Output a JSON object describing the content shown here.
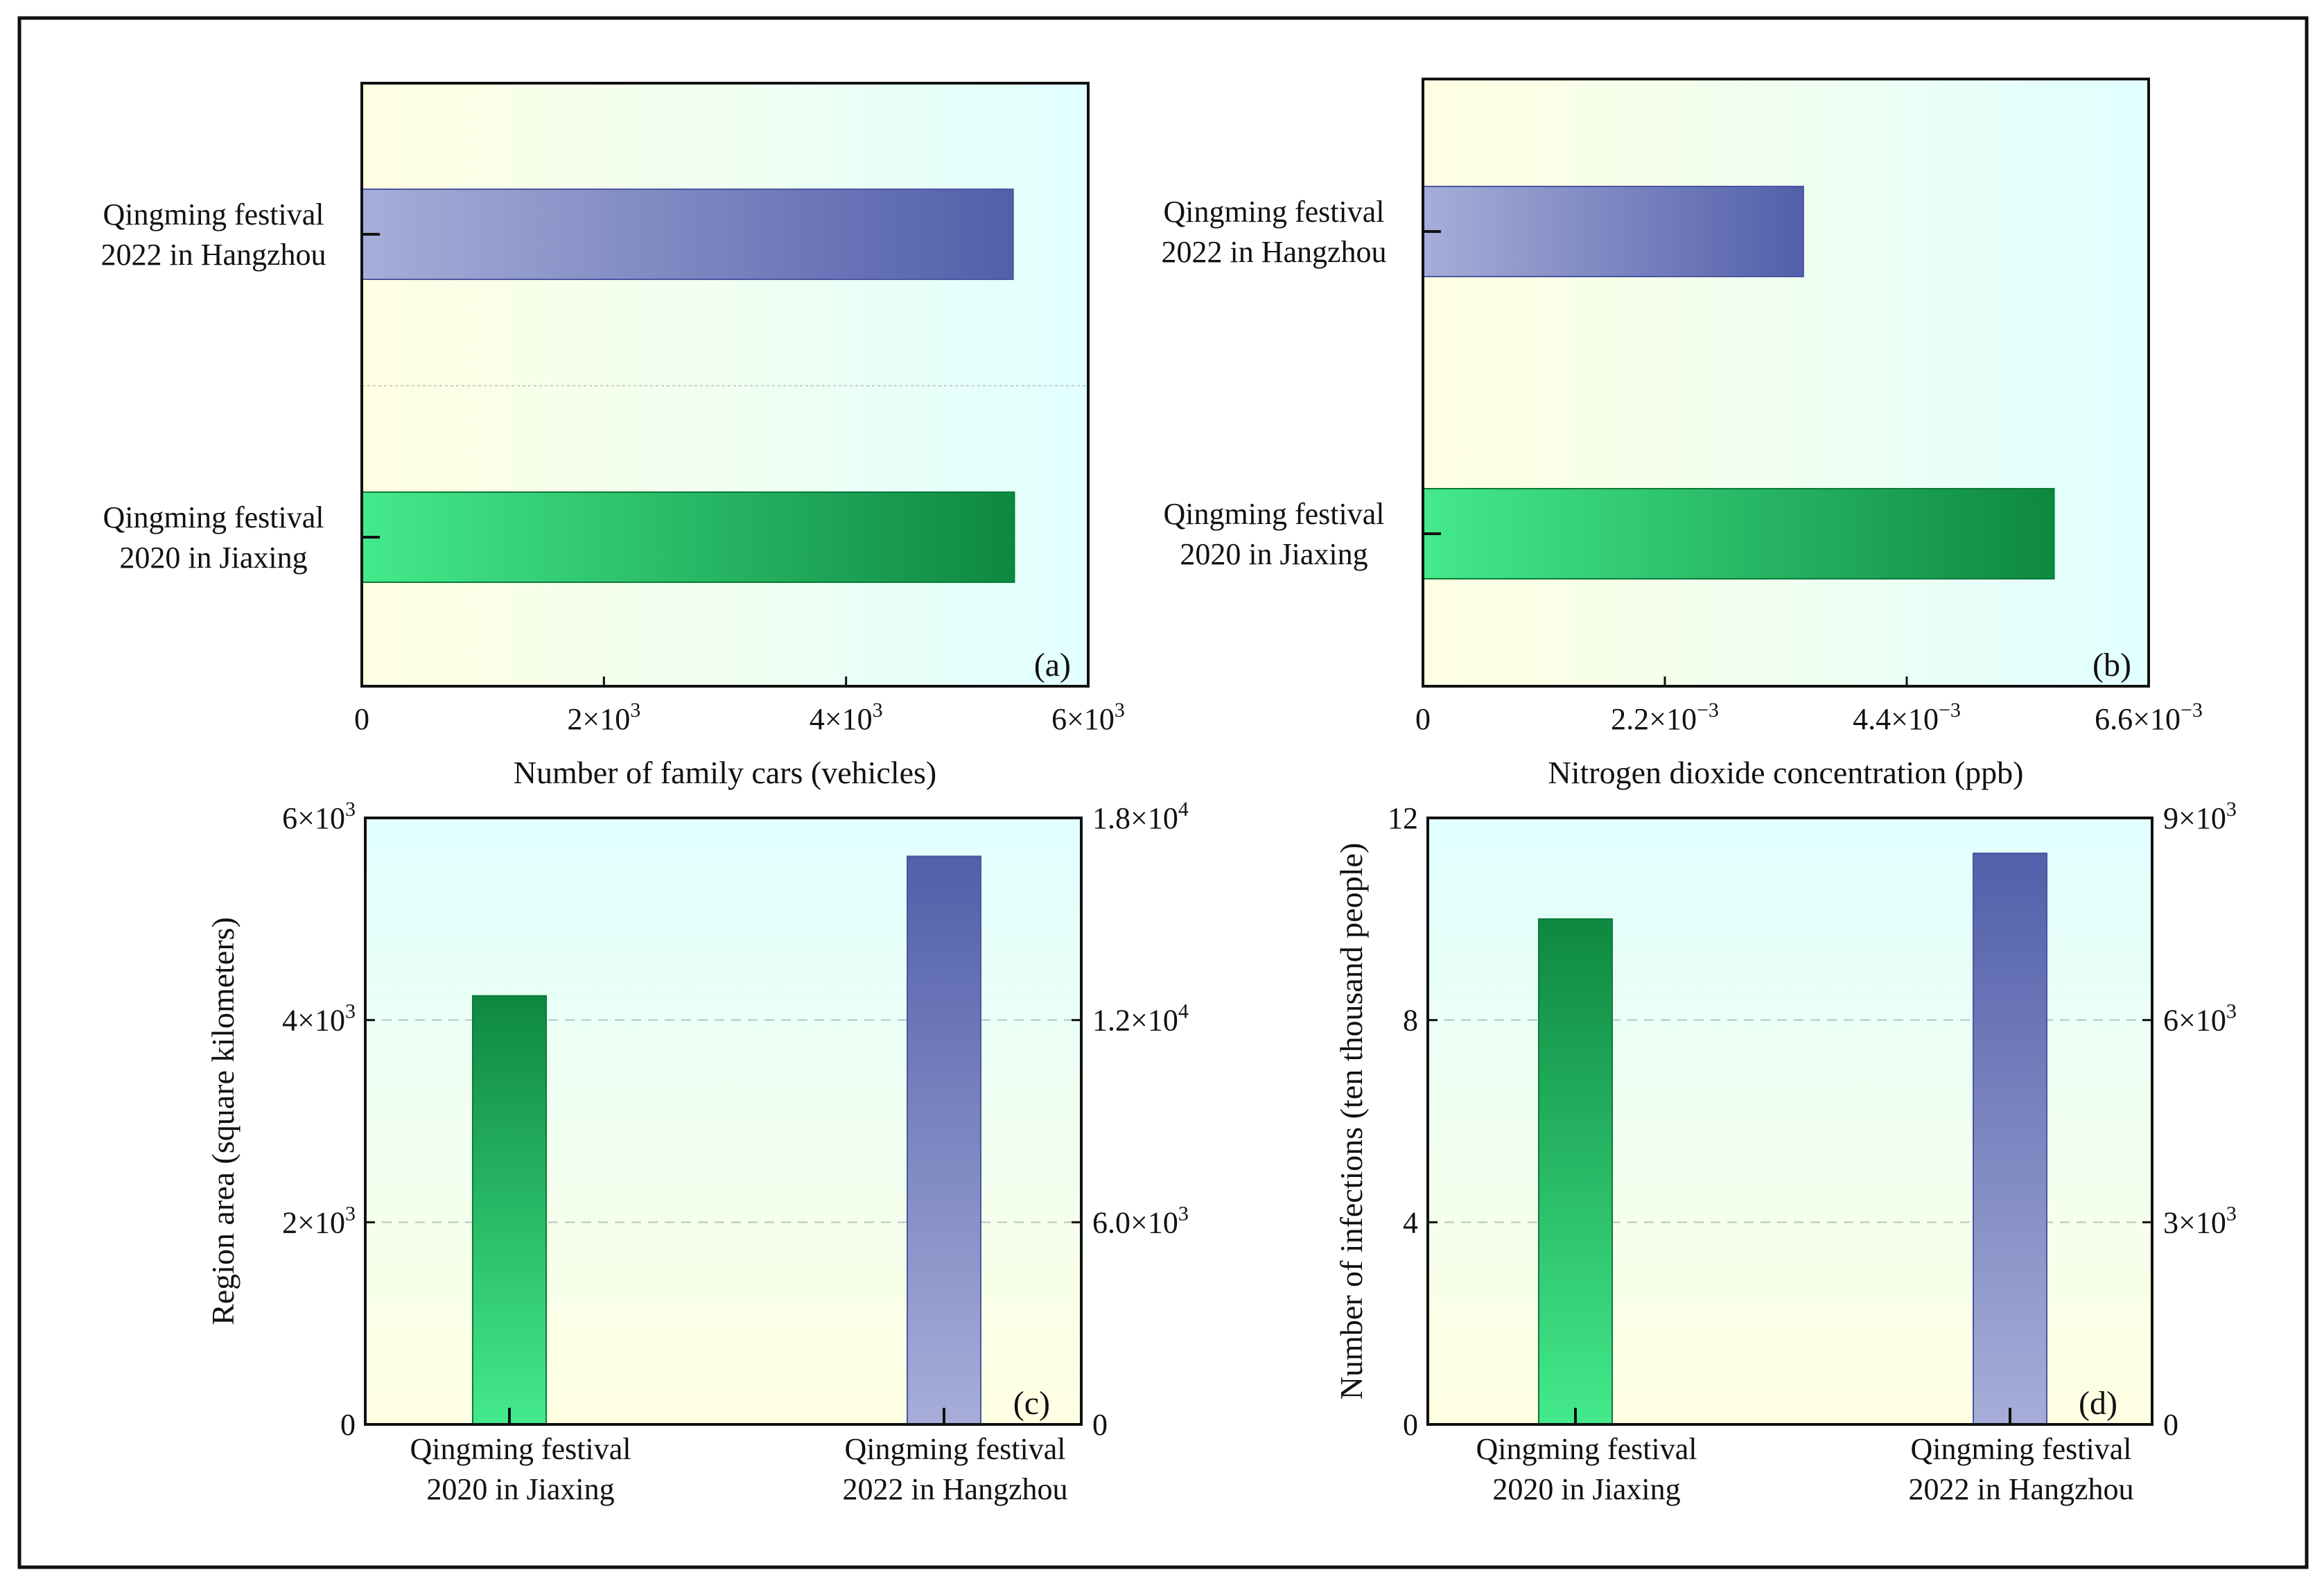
{
  "colors": {
    "green_light": "#44EA8C",
    "green_dark": "#0E8840",
    "blue_light": "#A6AED8",
    "blue_dark": "#525FAA",
    "bg_yellow": "#FFFFE2",
    "bg_cyan": "#E0FFFF",
    "frame": "#111111"
  },
  "chart_data": [
    {
      "panel": "(a)",
      "type": "bar",
      "orientation": "horizontal",
      "categories": [
        "Qingming festival 2022 in Hangzhou",
        "Qingming festival 2020 in Jiaxing"
      ],
      "category_lines": [
        [
          "Qingming festival",
          "2022 in Hangzhou"
        ],
        [
          "Qingming festival",
          "2020 in Jiaxing"
        ]
      ],
      "values": [
        5380,
        5390
      ],
      "bar_colors": [
        "blue",
        "green"
      ],
      "xlabel": "Number of family cars (vehicles)",
      "xlim": [
        0,
        6000
      ],
      "xticks": [
        0,
        2000,
        4000,
        6000
      ],
      "xtick_labels": [
        {
          "base": "0",
          "exp": ""
        },
        {
          "base": "2×10",
          "exp": "3"
        },
        {
          "base": "4×10",
          "exp": "3"
        },
        {
          "base": "6×10",
          "exp": "3"
        }
      ],
      "grid": "faint horizontal separator",
      "legend": "none"
    },
    {
      "panel": "(b)",
      "type": "bar",
      "orientation": "horizontal",
      "categories": [
        "Qingming festival 2022 in Hangzhou",
        "Qingming festival 2020 in Jiaxing"
      ],
      "category_lines": [
        [
          "Qingming festival",
          "2022 in Hangzhou"
        ],
        [
          "Qingming festival",
          "2020 in Jiaxing"
        ]
      ],
      "values": [
        0.00346,
        0.00574
      ],
      "bar_colors": [
        "blue",
        "green"
      ],
      "xlabel": "Nitrogen dioxide concentration (ppb)",
      "xlim": [
        0,
        0.0066
      ],
      "xticks": [
        0,
        0.0022,
        0.0044,
        0.0066
      ],
      "xtick_labels": [
        {
          "base": "0",
          "exp": ""
        },
        {
          "base": "2.2×10",
          "exp": "−3"
        },
        {
          "base": "4.4×10",
          "exp": "−3"
        },
        {
          "base": "6.6×10",
          "exp": "−3"
        }
      ],
      "legend": "none"
    },
    {
      "panel": "(c)",
      "type": "bar",
      "orientation": "vertical",
      "categories": [
        "Qingming festival 2020 in Jiaxing",
        "Qingming festival 2022 in Hangzhou"
      ],
      "category_lines": [
        [
          "Qingming festival",
          "2020 in Jiaxing"
        ],
        [
          "Qingming festival",
          "2022 in Hangzhou"
        ]
      ],
      "values": [
        4240,
        5620
      ],
      "bar_colors": [
        "green",
        "blue"
      ],
      "ylabel": "Region area (square kilometers)",
      "ylim": [
        0,
        6000
      ],
      "yticks": [
        0,
        2000,
        4000,
        6000
      ],
      "ytick_labels": [
        {
          "base": "0",
          "exp": ""
        },
        {
          "base": "2×10",
          "exp": "3"
        },
        {
          "base": "4×10",
          "exp": "3"
        },
        {
          "base": "6×10",
          "exp": "3"
        }
      ],
      "y2lim": [
        0,
        18000
      ],
      "y2ticks": [
        0,
        6000,
        12000,
        18000
      ],
      "y2tick_labels": [
        {
          "base": "0",
          "exp": ""
        },
        {
          "base": "6.0×10",
          "exp": "3"
        },
        {
          "base": "1.2×10",
          "exp": "4"
        },
        {
          "base": "1.8×10",
          "exp": "4"
        }
      ],
      "grid": "dashed horizontal",
      "legend": "none"
    },
    {
      "panel": "(d)",
      "type": "bar",
      "orientation": "vertical",
      "categories": [
        "Qingming festival 2020 in Jiaxing",
        "Qingming festival 2022 in Hangzhou"
      ],
      "category_lines": [
        [
          "Qingming festival",
          "2020 in Jiaxing"
        ],
        [
          "Qingming festival",
          "2022 in Hangzhou"
        ]
      ],
      "values": [
        10.0,
        11.3
      ],
      "bar_colors": [
        "green",
        "blue"
      ],
      "ylabel": "Number of infections (ten thousand people)",
      "ylim": [
        0,
        12
      ],
      "yticks": [
        0,
        4,
        8,
        12
      ],
      "ytick_labels": [
        {
          "base": "0",
          "exp": ""
        },
        {
          "base": "4",
          "exp": ""
        },
        {
          "base": "8",
          "exp": ""
        },
        {
          "base": "12",
          "exp": ""
        }
      ],
      "y2lim": [
        0,
        9000
      ],
      "y2ticks": [
        0,
        3000,
        6000,
        9000
      ],
      "y2tick_labels": [
        {
          "base": "0",
          "exp": ""
        },
        {
          "base": "3×10",
          "exp": "3"
        },
        {
          "base": "6×10",
          "exp": "3"
        },
        {
          "base": "9×10",
          "exp": "3"
        }
      ],
      "grid": "dashed horizontal",
      "legend": "none"
    }
  ]
}
